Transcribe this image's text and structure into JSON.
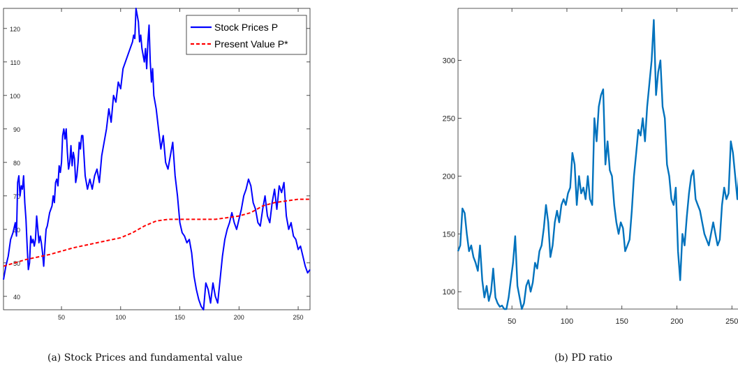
{
  "chart_data": [
    {
      "type": "line",
      "caption": "(a) Stock Prices and fundamental value",
      "xlim": [
        1,
        260
      ],
      "ylim": [
        36,
        126
      ],
      "xticks": [
        50,
        100,
        150,
        200,
        250
      ],
      "yticks": [
        40,
        50,
        60,
        70,
        80,
        90,
        100,
        110,
        120
      ],
      "grid": false,
      "legend_position": "top-right",
      "series": [
        {
          "name": "Stock Prices P",
          "color": "#0000ff",
          "style": "solid",
          "x": [
            1,
            3,
            5,
            7,
            9,
            11,
            12,
            13,
            14,
            15,
            16,
            17,
            18,
            19,
            20,
            21,
            22,
            23,
            24,
            25,
            26,
            27,
            28,
            29,
            30,
            31,
            32,
            33,
            34,
            35,
            36,
            37,
            38,
            39,
            40,
            41,
            42,
            43,
            44,
            45,
            46,
            47,
            48,
            49,
            50,
            51,
            52,
            53,
            54,
            55,
            56,
            57,
            58,
            59,
            60,
            61,
            62,
            63,
            64,
            65,
            66,
            67,
            68,
            69,
            70,
            72,
            74,
            76,
            78,
            80,
            82,
            84,
            86,
            88,
            90,
            92,
            94,
            96,
            98,
            100,
            102,
            104,
            106,
            108,
            110,
            111,
            112,
            113,
            114,
            115,
            116,
            117,
            118,
            119,
            120,
            121,
            122,
            123,
            124,
            125,
            126,
            127,
            128,
            130,
            132,
            134,
            136,
            138,
            140,
            142,
            144,
            146,
            148,
            150,
            152,
            154,
            156,
            158,
            160,
            162,
            164,
            166,
            168,
            170,
            172,
            174,
            176,
            178,
            180,
            182,
            184,
            186,
            188,
            190,
            192,
            194,
            196,
            198,
            200,
            202,
            204,
            206,
            208,
            210,
            212,
            214,
            216,
            218,
            220,
            222,
            224,
            226,
            228,
            230,
            232,
            234,
            236,
            238,
            240,
            242,
            244,
            246,
            248,
            250,
            252,
            254,
            256,
            258,
            260
          ],
          "values": [
            45,
            49,
            52,
            57,
            59,
            62,
            58,
            74,
            76,
            70,
            73,
            72,
            76,
            68,
            63,
            55,
            48,
            50,
            58,
            56,
            57,
            55,
            57,
            64,
            60,
            56,
            58,
            56,
            53,
            49,
            55,
            60,
            61,
            63,
            65,
            66,
            67,
            70,
            68,
            74,
            75,
            73,
            79,
            77,
            80,
            88,
            90,
            87,
            90,
            83,
            78,
            80,
            85,
            79,
            83,
            81,
            74,
            76,
            80,
            86,
            84,
            88,
            88,
            82,
            76,
            72,
            75,
            72,
            76,
            78,
            74,
            82,
            86,
            90,
            96,
            92,
            100,
            98,
            104,
            102,
            108,
            110,
            112,
            114,
            116,
            118,
            117,
            126,
            124,
            122,
            116,
            118,
            114,
            112,
            110,
            114,
            108,
            116,
            121,
            110,
            104,
            108,
            100,
            96,
            90,
            84,
            88,
            80,
            78,
            82,
            86,
            76,
            70,
            62,
            59,
            58,
            56,
            57,
            53,
            46,
            42,
            39,
            37,
            36,
            44,
            42,
            38,
            44,
            40,
            38,
            45,
            52,
            57,
            60,
            62,
            65,
            62,
            60,
            63,
            66,
            70,
            72,
            75,
            73,
            68,
            66,
            62,
            61,
            66,
            70,
            64,
            62,
            68,
            72,
            66,
            73,
            71,
            74,
            64,
            60,
            62,
            58,
            57,
            54,
            55,
            52,
            49,
            47,
            48
          ]
        },
        {
          "name": "Present Value P*",
          "color": "#ff0000",
          "style": "dashed",
          "x": [
            1,
            20,
            40,
            60,
            80,
            100,
            110,
            120,
            130,
            140,
            150,
            160,
            170,
            180,
            190,
            200,
            210,
            220,
            230,
            240,
            250,
            260
          ],
          "values": [
            49,
            51,
            52.5,
            54.5,
            56,
            57.5,
            59,
            61,
            62.5,
            63,
            63,
            63,
            63,
            63,
            63.5,
            64,
            65,
            67,
            68,
            68.5,
            69,
            69
          ]
        }
      ]
    },
    {
      "type": "line",
      "caption": "(b) PD ratio",
      "xlim": [
        1,
        260
      ],
      "ylim": [
        85,
        345
      ],
      "xticks": [
        50,
        100,
        150,
        200,
        250
      ],
      "yticks": [
        100,
        150,
        200,
        250,
        300
      ],
      "grid": false,
      "series": [
        {
          "color": "#0072bd",
          "style": "solid",
          "x": [
            1,
            3,
            5,
            7,
            9,
            11,
            13,
            15,
            17,
            19,
            21,
            23,
            25,
            27,
            29,
            31,
            33,
            35,
            37,
            39,
            41,
            43,
            45,
            47,
            49,
            51,
            53,
            55,
            57,
            59,
            61,
            63,
            65,
            67,
            69,
            71,
            73,
            75,
            77,
            79,
            81,
            83,
            85,
            87,
            89,
            91,
            93,
            95,
            97,
            99,
            101,
            103,
            105,
            107,
            109,
            111,
            113,
            115,
            117,
            119,
            121,
            123,
            125,
            127,
            129,
            131,
            133,
            135,
            137,
            139,
            141,
            143,
            145,
            147,
            149,
            151,
            153,
            155,
            157,
            159,
            161,
            163,
            165,
            167,
            169,
            171,
            173,
            175,
            177,
            179,
            181,
            183,
            185,
            187,
            189,
            191,
            193,
            195,
            197,
            199,
            201,
            203,
            205,
            207,
            209,
            211,
            213,
            215,
            217,
            219,
            221,
            223,
            225,
            227,
            229,
            231,
            233,
            235,
            237,
            239,
            241,
            243,
            245,
            247,
            249,
            251,
            253,
            255,
            257,
            259,
            260
          ],
          "values": [
            135,
            140,
            172,
            168,
            150,
            135,
            140,
            130,
            125,
            118,
            140,
            110,
            95,
            105,
            92,
            100,
            120,
            95,
            90,
            87,
            88,
            84,
            85,
            95,
            110,
            125,
            148,
            105,
            95,
            85,
            90,
            105,
            110,
            100,
            108,
            125,
            120,
            135,
            140,
            155,
            175,
            160,
            130,
            140,
            160,
            170,
            160,
            175,
            180,
            175,
            185,
            190,
            220,
            210,
            175,
            200,
            185,
            190,
            180,
            200,
            180,
            175,
            250,
            230,
            260,
            270,
            275,
            210,
            230,
            205,
            200,
            175,
            160,
            150,
            160,
            155,
            135,
            140,
            145,
            170,
            200,
            220,
            240,
            235,
            250,
            230,
            260,
            280,
            300,
            335,
            270,
            290,
            300,
            260,
            250,
            210,
            200,
            180,
            175,
            190,
            135,
            110,
            150,
            140,
            165,
            185,
            200,
            205,
            180,
            175,
            170,
            160,
            150,
            145,
            140,
            150,
            160,
            150,
            140,
            145,
            175,
            190,
            180,
            185,
            230,
            220,
            200,
            180,
            210,
            205,
            200
          ]
        }
      ]
    }
  ]
}
